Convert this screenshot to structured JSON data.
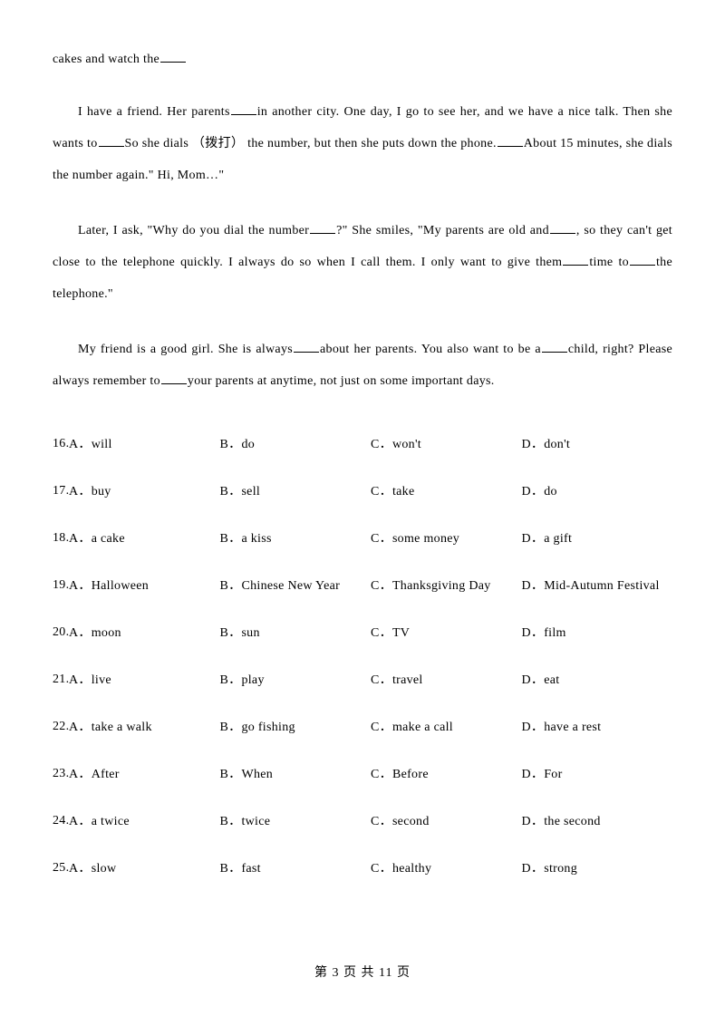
{
  "fragment": "cakes and watch the",
  "para1_a": "I have a friend. Her parents",
  "para1_b": "in another city. One day, I go to see her, and we have a nice talk. Then she wants to",
  "para1_c": "So she dials （拨打） the number, but then she puts down the phone.",
  "para1_d": "About 15 minutes, she dials the number again.\" Hi, Mom…\"",
  "para2_a": "Later, I ask, \"Why do you dial the number",
  "para2_b": "?\" She smiles, \"My parents are old and",
  "para2_c": ", so they can't get close to the telephone quickly. I always do so when I call them. I only want to give them",
  "para2_d": "time to",
  "para2_e": "the telephone.\"",
  "para3_a": "My friend is a good girl. She is always",
  "para3_b": "about her parents. You also want to be a",
  "para3_c": "child, right? Please always remember to",
  "para3_d": "your parents at anytime, not just on some important days.",
  "questions": [
    {
      "num": "16.",
      "a": "A．will",
      "b": "B．do",
      "c": "C．won't",
      "d": "D．don't"
    },
    {
      "num": "17.",
      "a": "A．buy",
      "b": "B．sell",
      "c": "C．take",
      "d": "D．do"
    },
    {
      "num": "18.",
      "a": "A．a cake",
      "b": "B．a kiss",
      "c": "C．some money",
      "d": "D．a gift"
    },
    {
      "num": "19.",
      "a": "A．Halloween",
      "b": "B．Chinese New Year",
      "c": "C．Thanksgiving Day",
      "d": "D．Mid-Autumn Festival"
    },
    {
      "num": "20.",
      "a": "A．moon",
      "b": "B．sun",
      "c": "C．TV",
      "d": "D．film"
    },
    {
      "num": "21.",
      "a": "A．live",
      "b": "B．play",
      "c": "C．travel",
      "d": "D．eat"
    },
    {
      "num": "22.",
      "a": "A．take a walk",
      "b": "B．go fishing",
      "c": "C．make a call",
      "d": "D．have a rest"
    },
    {
      "num": "23.",
      "a": "A．After",
      "b": "B．When",
      "c": "C．Before",
      "d": "D．For"
    },
    {
      "num": "24.",
      "a": "A．a twice",
      "b": "B．twice",
      "c": "C．second",
      "d": "D．the second"
    },
    {
      "num": "25.",
      "a": "A．slow",
      "b": "B．fast",
      "c": "C．healthy",
      "d": "D．strong"
    }
  ],
  "footer": "第 3 页 共 11 页"
}
